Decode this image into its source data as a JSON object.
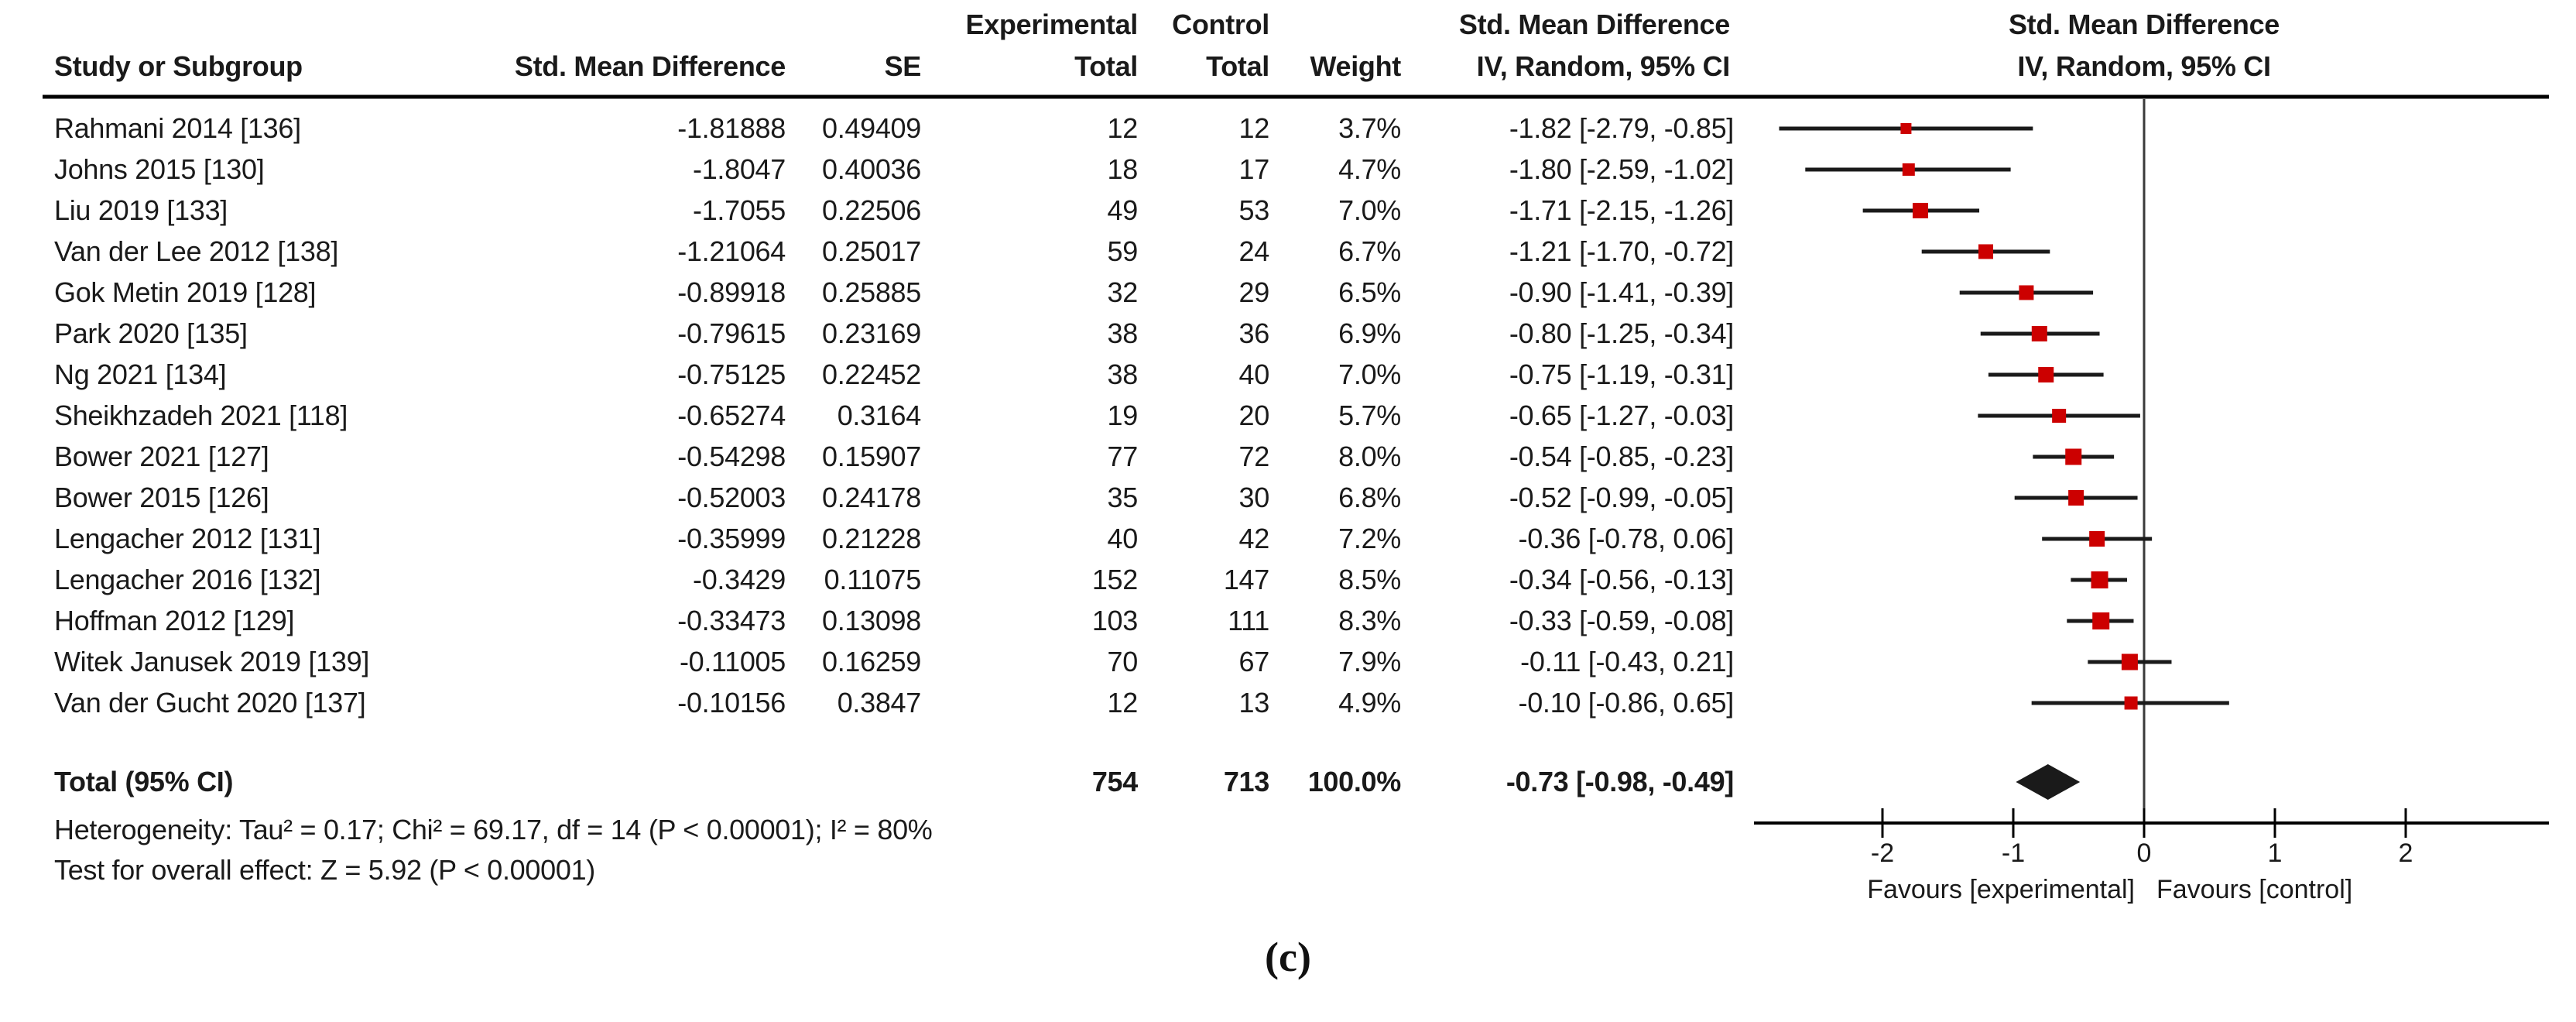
{
  "chart_data": {
    "type": "forest",
    "effect_measure": "Std. Mean Difference",
    "model": "IV, Random, 95% CI",
    "columns": {
      "study": "Study or Subgroup",
      "smd": "Std. Mean Difference",
      "se": "SE",
      "experimental": "Experimental",
      "control": "Control",
      "total": "Total",
      "weight": "Weight",
      "iv_random": "IV, Random, 95% CI",
      "plot_title": "Std. Mean Difference",
      "plot_sub": "IV, Random, 95% CI"
    },
    "studies": [
      {
        "name": "Rahmani 2014 [136]",
        "smd": "-1.81888",
        "se": "0.49409",
        "exp_total": "12",
        "ctrl_total": "12",
        "weight": "3.7%",
        "weight_num": 3.7,
        "ci_label": "-1.82 [-2.79, -0.85]",
        "est": -1.82,
        "lo": -2.79,
        "hi": -0.85
      },
      {
        "name": "Johns 2015 [130]",
        "smd": "-1.8047",
        "se": "0.40036",
        "exp_total": "18",
        "ctrl_total": "17",
        "weight": "4.7%",
        "weight_num": 4.7,
        "ci_label": "-1.80 [-2.59, -1.02]",
        "est": -1.8,
        "lo": -2.59,
        "hi": -1.02
      },
      {
        "name": "Liu 2019 [133]",
        "smd": "-1.7055",
        "se": "0.22506",
        "exp_total": "49",
        "ctrl_total": "53",
        "weight": "7.0%",
        "weight_num": 7.0,
        "ci_label": "-1.71 [-2.15, -1.26]",
        "est": -1.71,
        "lo": -2.15,
        "hi": -1.26
      },
      {
        "name": "Van der Lee 2012 [138]",
        "smd": "-1.21064",
        "se": "0.25017",
        "exp_total": "59",
        "ctrl_total": "24",
        "weight": "6.7%",
        "weight_num": 6.7,
        "ci_label": "-1.21 [-1.70, -0.72]",
        "est": -1.21,
        "lo": -1.7,
        "hi": -0.72
      },
      {
        "name": "Gok Metin 2019 [128]",
        "smd": "-0.89918",
        "se": "0.25885",
        "exp_total": "32",
        "ctrl_total": "29",
        "weight": "6.5%",
        "weight_num": 6.5,
        "ci_label": "-0.90 [-1.41, -0.39]",
        "est": -0.9,
        "lo": -1.41,
        "hi": -0.39
      },
      {
        "name": "Park 2020 [135]",
        "smd": "-0.79615",
        "se": "0.23169",
        "exp_total": "38",
        "ctrl_total": "36",
        "weight": "6.9%",
        "weight_num": 6.9,
        "ci_label": "-0.80 [-1.25, -0.34]",
        "est": -0.8,
        "lo": -1.25,
        "hi": -0.34
      },
      {
        "name": "Ng 2021 [134]",
        "smd": "-0.75125",
        "se": "0.22452",
        "exp_total": "38",
        "ctrl_total": "40",
        "weight": "7.0%",
        "weight_num": 7.0,
        "ci_label": "-0.75 [-1.19, -0.31]",
        "est": -0.75,
        "lo": -1.19,
        "hi": -0.31
      },
      {
        "name": "Sheikhzadeh 2021 [118]",
        "smd": "-0.65274",
        "se": "0.3164",
        "exp_total": "19",
        "ctrl_total": "20",
        "weight": "5.7%",
        "weight_num": 5.7,
        "ci_label": "-0.65 [-1.27, -0.03]",
        "est": -0.65,
        "lo": -1.27,
        "hi": -0.03
      },
      {
        "name": "Bower 2021 [127]",
        "smd": "-0.54298",
        "se": "0.15907",
        "exp_total": "77",
        "ctrl_total": "72",
        "weight": "8.0%",
        "weight_num": 8.0,
        "ci_label": "-0.54 [-0.85, -0.23]",
        "est": -0.54,
        "lo": -0.85,
        "hi": -0.23
      },
      {
        "name": "Bower 2015 [126]",
        "smd": "-0.52003",
        "se": "0.24178",
        "exp_total": "35",
        "ctrl_total": "30",
        "weight": "6.8%",
        "weight_num": 6.8,
        "ci_label": "-0.52 [-0.99, -0.05]",
        "est": -0.52,
        "lo": -0.99,
        "hi": -0.05
      },
      {
        "name": "Lengacher 2012 [131]",
        "smd": "-0.35999",
        "se": "0.21228",
        "exp_total": "40",
        "ctrl_total": "42",
        "weight": "7.2%",
        "weight_num": 7.2,
        "ci_label": "-0.36 [-0.78, 0.06]",
        "est": -0.36,
        "lo": -0.78,
        "hi": 0.06
      },
      {
        "name": "Lengacher 2016 [132]",
        "smd": "-0.3429",
        "se": "0.11075",
        "exp_total": "152",
        "ctrl_total": "147",
        "weight": "8.5%",
        "weight_num": 8.5,
        "ci_label": "-0.34 [-0.56, -0.13]",
        "est": -0.34,
        "lo": -0.56,
        "hi": -0.13
      },
      {
        "name": "Hoffman 2012 [129]",
        "smd": "-0.33473",
        "se": "0.13098",
        "exp_total": "103",
        "ctrl_total": "111",
        "weight": "8.3%",
        "weight_num": 8.3,
        "ci_label": "-0.33 [-0.59, -0.08]",
        "est": -0.33,
        "lo": -0.59,
        "hi": -0.08
      },
      {
        "name": "Witek Janusek 2019 [139]",
        "smd": "-0.11005",
        "se": "0.16259",
        "exp_total": "70",
        "ctrl_total": "67",
        "weight": "7.9%",
        "weight_num": 7.9,
        "ci_label": "-0.11 [-0.43, 0.21]",
        "est": -0.11,
        "lo": -0.43,
        "hi": 0.21
      },
      {
        "name": "Van der Gucht 2020 [137]",
        "smd": "-0.10156",
        "se": "0.3847",
        "exp_total": "12",
        "ctrl_total": "13",
        "weight": "4.9%",
        "weight_num": 4.9,
        "ci_label": "-0.10 [-0.86, 0.65]",
        "est": -0.1,
        "lo": -0.86,
        "hi": 0.65
      }
    ],
    "total": {
      "label": "Total (95% CI)",
      "exp_total": "754",
      "ctrl_total": "713",
      "weight": "100.0%",
      "ci_label": "-0.73 [-0.98, -0.49]",
      "est": -0.73,
      "lo": -0.98,
      "hi": -0.49
    },
    "heterogeneity": "Heterogeneity: Tau² = 0.17; Chi² = 69.17, df = 14 (P < 0.00001); I² = 80%",
    "overall_effect": "Test for overall effect: Z = 5.92 (P < 0.00001)",
    "axis": {
      "ticks": [
        -2,
        -1,
        0,
        1,
        2
      ],
      "range": [
        -3.0,
        3.1
      ],
      "favours_left": "Favours [experimental]",
      "favours_right": "Favours [control]"
    },
    "caption": "(c)"
  },
  "colors": {
    "marker": "#CC0000",
    "diamond": "#1a1a1a",
    "ci_line": "#1a1a1a",
    "axis": "#000000",
    "zero_line": "#3a3a3a",
    "text": "#1a1a1a"
  }
}
